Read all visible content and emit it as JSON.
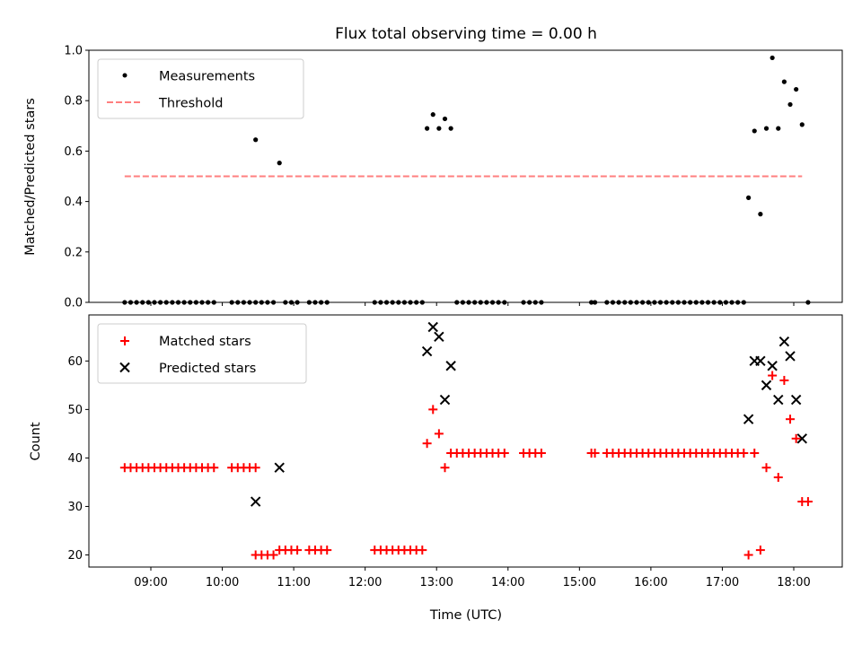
{
  "chart_data": {
    "type": "scatter",
    "title": "Flux total observing time = 0.00 h",
    "xlabel": "Time (UTC)",
    "x_tick_labels": [
      "09:00",
      "10:00",
      "11:00",
      "12:00",
      "13:00",
      "14:00",
      "15:00",
      "16:00",
      "17:00",
      "18:00"
    ],
    "panels": [
      {
        "id": "top",
        "ylabel": "Matched/Predicted stars",
        "ylim": [
          0.0,
          1.0
        ],
        "y_ticks": [
          "0.0",
          "0.2",
          "0.4",
          "0.6",
          "0.8",
          "1.0"
        ],
        "legend_placement": "upper-left",
        "series": [
          {
            "name": "Measurements",
            "marker": "dot",
            "color": "#000000",
            "points": [
              [
                "08:38",
                0
              ],
              [
                "08:43",
                0
              ],
              [
                "08:48",
                0
              ],
              [
                "08:53",
                0
              ],
              [
                "08:58",
                0
              ],
              [
                "09:03",
                0
              ],
              [
                "09:08",
                0
              ],
              [
                "09:13",
                0
              ],
              [
                "09:18",
                0
              ],
              [
                "09:23",
                0
              ],
              [
                "09:28",
                0
              ],
              [
                "09:33",
                0
              ],
              [
                "09:38",
                0
              ],
              [
                "09:43",
                0
              ],
              [
                "09:48",
                0
              ],
              [
                "09:53",
                0
              ],
              [
                "10:08",
                0
              ],
              [
                "10:13",
                0
              ],
              [
                "10:18",
                0
              ],
              [
                "10:23",
                0
              ],
              [
                "10:28",
                0
              ],
              [
                "10:28",
                0.645
              ],
              [
                "10:33",
                0
              ],
              [
                "10:38",
                0
              ],
              [
                "10:43",
                0
              ],
              [
                "10:48",
                0.553
              ],
              [
                "10:53",
                0
              ],
              [
                "10:58",
                0
              ],
              [
                "11:03",
                0
              ],
              [
                "11:13",
                0
              ],
              [
                "11:18",
                0
              ],
              [
                "11:23",
                0
              ],
              [
                "11:28",
                0
              ],
              [
                "12:08",
                0
              ],
              [
                "12:13",
                0
              ],
              [
                "12:18",
                0
              ],
              [
                "12:23",
                0
              ],
              [
                "12:28",
                0
              ],
              [
                "12:33",
                0
              ],
              [
                "12:38",
                0
              ],
              [
                "12:43",
                0
              ],
              [
                "12:48",
                0
              ],
              [
                "12:52",
                0.69
              ],
              [
                "12:57",
                0.745
              ],
              [
                "13:02",
                0.69
              ],
              [
                "13:07",
                0.728
              ],
              [
                "13:12",
                0.69
              ],
              [
                "13:17",
                0
              ],
              [
                "13:22",
                0
              ],
              [
                "13:27",
                0
              ],
              [
                "13:32",
                0
              ],
              [
                "13:37",
                0
              ],
              [
                "13:42",
                0
              ],
              [
                "13:47",
                0
              ],
              [
                "13:52",
                0
              ],
              [
                "13:57",
                0
              ],
              [
                "14:13",
                0
              ],
              [
                "14:18",
                0
              ],
              [
                "14:23",
                0
              ],
              [
                "14:28",
                0
              ],
              [
                "15:10",
                0
              ],
              [
                "15:13",
                0
              ],
              [
                "15:23",
                0
              ],
              [
                "15:28",
                0
              ],
              [
                "15:33",
                0
              ],
              [
                "15:38",
                0
              ],
              [
                "15:43",
                0
              ],
              [
                "15:48",
                0
              ],
              [
                "15:53",
                0
              ],
              [
                "15:58",
                0
              ],
              [
                "16:03",
                0
              ],
              [
                "16:08",
                0
              ],
              [
                "16:13",
                0
              ],
              [
                "16:18",
                0
              ],
              [
                "16:23",
                0
              ],
              [
                "16:28",
                0
              ],
              [
                "16:33",
                0
              ],
              [
                "16:38",
                0
              ],
              [
                "16:43",
                0
              ],
              [
                "16:48",
                0
              ],
              [
                "16:53",
                0
              ],
              [
                "16:58",
                0
              ],
              [
                "17:03",
                0
              ],
              [
                "17:08",
                0
              ],
              [
                "17:13",
                0
              ],
              [
                "17:18",
                0
              ],
              [
                "17:22",
                0.415
              ],
              [
                "17:27",
                0.68
              ],
              [
                "17:32",
                0.35
              ],
              [
                "17:37",
                0.69
              ],
              [
                "17:42",
                0.97
              ],
              [
                "17:47",
                0.69
              ],
              [
                "17:52",
                0.875
              ],
              [
                "17:57",
                0.785
              ],
              [
                "18:02",
                0.845
              ],
              [
                "18:07",
                0.705
              ],
              [
                "18:12",
                0.0
              ]
            ]
          },
          {
            "name": "Threshold",
            "marker": "dashed-line",
            "color": "#ff7f7f",
            "points": [
              [
                "08:38",
                0.5
              ],
              [
                "18:07",
                0.5
              ]
            ]
          }
        ]
      },
      {
        "id": "bottom",
        "ylabel": "Count",
        "ylim": [
          17.5,
          69.5
        ],
        "y_ticks": [
          "20",
          "30",
          "40",
          "50",
          "60"
        ],
        "legend_placement": "upper-left",
        "series": [
          {
            "name": "Matched stars",
            "marker": "plus",
            "color": "#ff0000",
            "points": [
              [
                "08:38",
                38
              ],
              [
                "08:43",
                38
              ],
              [
                "08:48",
                38
              ],
              [
                "08:53",
                38
              ],
              [
                "08:58",
                38
              ],
              [
                "09:03",
                38
              ],
              [
                "09:08",
                38
              ],
              [
                "09:13",
                38
              ],
              [
                "09:18",
                38
              ],
              [
                "09:23",
                38
              ],
              [
                "09:28",
                38
              ],
              [
                "09:33",
                38
              ],
              [
                "09:38",
                38
              ],
              [
                "09:43",
                38
              ],
              [
                "09:48",
                38
              ],
              [
                "09:53",
                38
              ],
              [
                "10:08",
                38
              ],
              [
                "10:13",
                38
              ],
              [
                "10:18",
                38
              ],
              [
                "10:23",
                38
              ],
              [
                "10:28",
                38
              ],
              [
                "10:28",
                20
              ],
              [
                "10:33",
                20
              ],
              [
                "10:38",
                20
              ],
              [
                "10:43",
                20
              ],
              [
                "10:48",
                21
              ],
              [
                "10:53",
                21
              ],
              [
                "10:58",
                21
              ],
              [
                "11:03",
                21
              ],
              [
                "11:13",
                21
              ],
              [
                "11:18",
                21
              ],
              [
                "11:23",
                21
              ],
              [
                "11:28",
                21
              ],
              [
                "12:08",
                21
              ],
              [
                "12:13",
                21
              ],
              [
                "12:18",
                21
              ],
              [
                "12:23",
                21
              ],
              [
                "12:28",
                21
              ],
              [
                "12:33",
                21
              ],
              [
                "12:38",
                21
              ],
              [
                "12:43",
                21
              ],
              [
                "12:48",
                21
              ],
              [
                "12:52",
                43
              ],
              [
                "12:57",
                50
              ],
              [
                "13:02",
                45
              ],
              [
                "13:07",
                38
              ],
              [
                "13:12",
                41
              ],
              [
                "13:17",
                41
              ],
              [
                "13:22",
                41
              ],
              [
                "13:27",
                41
              ],
              [
                "13:32",
                41
              ],
              [
                "13:37",
                41
              ],
              [
                "13:42",
                41
              ],
              [
                "13:47",
                41
              ],
              [
                "13:52",
                41
              ],
              [
                "13:57",
                41
              ],
              [
                "14:13",
                41
              ],
              [
                "14:18",
                41
              ],
              [
                "14:23",
                41
              ],
              [
                "14:28",
                41
              ],
              [
                "15:10",
                41
              ],
              [
                "15:13",
                41
              ],
              [
                "15:23",
                41
              ],
              [
                "15:28",
                41
              ],
              [
                "15:33",
                41
              ],
              [
                "15:38",
                41
              ],
              [
                "15:43",
                41
              ],
              [
                "15:48",
                41
              ],
              [
                "15:53",
                41
              ],
              [
                "15:58",
                41
              ],
              [
                "16:03",
                41
              ],
              [
                "16:08",
                41
              ],
              [
                "16:13",
                41
              ],
              [
                "16:18",
                41
              ],
              [
                "16:23",
                41
              ],
              [
                "16:28",
                41
              ],
              [
                "16:33",
                41
              ],
              [
                "16:38",
                41
              ],
              [
                "16:43",
                41
              ],
              [
                "16:48",
                41
              ],
              [
                "16:53",
                41
              ],
              [
                "16:58",
                41
              ],
              [
                "17:03",
                41
              ],
              [
                "17:08",
                41
              ],
              [
                "17:13",
                41
              ],
              [
                "17:18",
                41
              ],
              [
                "17:22",
                20
              ],
              [
                "17:27",
                41
              ],
              [
                "17:32",
                21
              ],
              [
                "17:37",
                38
              ],
              [
                "17:42",
                57
              ],
              [
                "17:47",
                36
              ],
              [
                "17:52",
                56
              ],
              [
                "17:57",
                48
              ],
              [
                "18:02",
                44
              ],
              [
                "18:07",
                31
              ],
              [
                "18:12",
                31
              ]
            ]
          },
          {
            "name": "Predicted stars",
            "marker": "x",
            "color": "#000000",
            "points": [
              [
                "10:28",
                31
              ],
              [
                "10:48",
                38
              ],
              [
                "12:52",
                62
              ],
              [
                "12:57",
                67
              ],
              [
                "13:02",
                65
              ],
              [
                "13:07",
                52
              ],
              [
                "13:12",
                59
              ],
              [
                "17:22",
                48
              ],
              [
                "17:27",
                60
              ],
              [
                "17:32",
                60
              ],
              [
                "17:37",
                55
              ],
              [
                "17:42",
                59
              ],
              [
                "17:47",
                52
              ],
              [
                "17:52",
                64
              ],
              [
                "17:57",
                61
              ],
              [
                "18:02",
                52
              ],
              [
                "18:07",
                44
              ]
            ]
          }
        ]
      }
    ]
  }
}
